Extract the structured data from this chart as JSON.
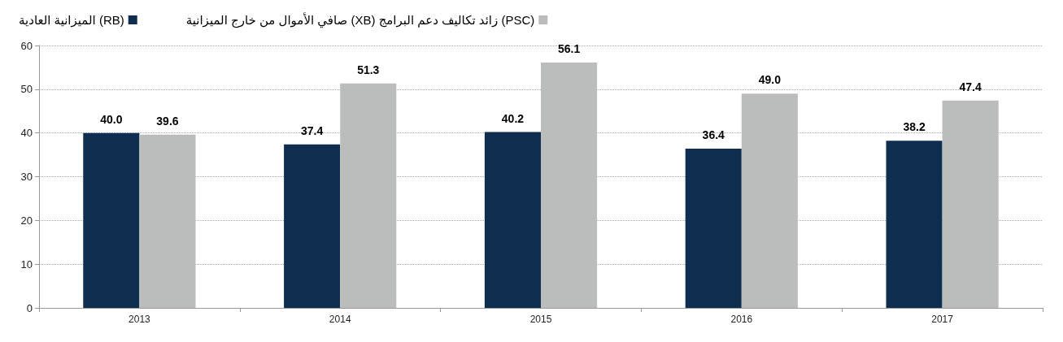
{
  "chart_data": {
    "type": "bar",
    "categories": [
      "2013",
      "2014",
      "2015",
      "2016",
      "2017"
    ],
    "series": [
      {
        "name": "الميزانية العادية (RB)",
        "color": "#0e2d4f",
        "values": [
          40.0,
          37.4,
          40.2,
          36.4,
          38.2
        ],
        "value_labels": [
          "40.0",
          "37.4",
          "40.2",
          "36.4",
          "38.2"
        ]
      },
      {
        "name": "صافي الأموال من خارج الميزانية (XB) زائد تكاليف دعم البرامج (PSC)",
        "color": "#bbbcbc",
        "values": [
          39.6,
          51.3,
          56.1,
          49.0,
          47.4
        ],
        "value_labels": [
          "39.6",
          "51.3",
          "56.1",
          "49.0",
          "47.4"
        ]
      }
    ],
    "ylim": [
      0,
      60
    ],
    "yticks": [
      0,
      10,
      20,
      30,
      40,
      50,
      60
    ],
    "grid": "y",
    "legend": "top left"
  }
}
